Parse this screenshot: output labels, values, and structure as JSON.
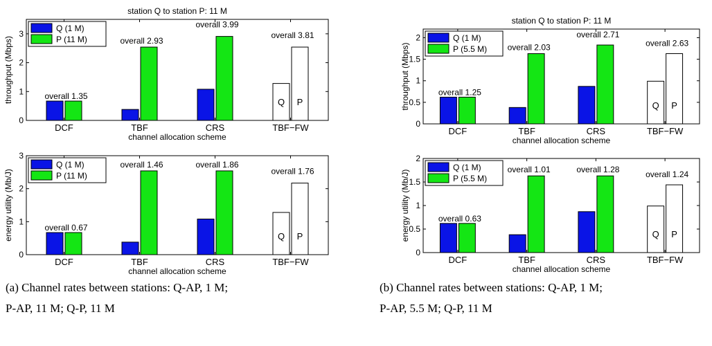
{
  "colors": {
    "q": "#0a14e6",
    "p": "#14e614",
    "fw": "#ffffff",
    "axis": "#000000"
  },
  "captions": {
    "a_line1": "(a) Channel rates between stations: Q-AP, 1 M;",
    "a_line2": "P-AP, 11 M; Q-P, 11 M",
    "b_line1": "(b) Channel rates between stations: Q-AP, 1 M;",
    "b_line2": "P-AP, 5.5 M; Q-P, 11 M"
  },
  "chart_data": [
    {
      "type": "bar",
      "title": "station Q to station P: 11 M",
      "xlabel": "channel allocation scheme",
      "ylabel": "throughput (Mbps)",
      "ylim": [
        0,
        3.5
      ],
      "yticks": [
        0,
        1,
        2,
        3
      ],
      "categories": [
        "DCF",
        "TBF",
        "CRS",
        "TBF−FW"
      ],
      "series": [
        {
          "name": "Q (1 M)",
          "values": [
            0.67,
            0.38,
            1.08,
            1.28
          ]
        },
        {
          "name": "P (11 M)",
          "values": [
            0.67,
            2.54,
            2.91,
            2.54
          ]
        }
      ],
      "annotations": [
        "overall 1.35",
        "overall 2.93",
        "overall 3.99",
        "overall 3.81"
      ],
      "bar_labels": [
        "Q",
        "P"
      ],
      "legend": "top-left",
      "grid": false
    },
    {
      "type": "bar",
      "title": "",
      "xlabel": "channel allocation scheme",
      "ylabel": "energy utility (Mb/J)",
      "ylim": [
        0,
        3
      ],
      "yticks": [
        0,
        1,
        2,
        3
      ],
      "categories": [
        "DCF",
        "TBF",
        "CRS",
        "TBF−FW"
      ],
      "series": [
        {
          "name": "Q (1 M)",
          "values": [
            0.67,
            0.38,
            1.08,
            1.28
          ]
        },
        {
          "name": "P (11 M)",
          "values": [
            0.67,
            2.54,
            2.54,
            2.17
          ]
        }
      ],
      "annotations": [
        "overall 0.67",
        "overall 1.46",
        "overall 1.86",
        "overall 1.76"
      ],
      "bar_labels": [
        "Q",
        "P"
      ],
      "legend": "top-left",
      "grid": false
    },
    {
      "type": "bar",
      "title": "station Q to station P: 11 M",
      "xlabel": "channel allocation scheme",
      "ylabel": "throughput (Mbps)",
      "ylim": [
        0,
        2.2
      ],
      "yticks": [
        0,
        0.5,
        1,
        1.5,
        2
      ],
      "categories": [
        "DCF",
        "TBF",
        "CRS",
        "TBF−FW"
      ],
      "series": [
        {
          "name": "Q (1 M)",
          "values": [
            0.62,
            0.38,
            0.87,
            0.99
          ]
        },
        {
          "name": "P (5.5 M)",
          "values": [
            0.62,
            1.63,
            1.83,
            1.63
          ]
        }
      ],
      "annotations": [
        "overall 1.25",
        "overall 2.03",
        "overall 2.71",
        "overall 2.63"
      ],
      "bar_labels": [
        "Q",
        "P"
      ],
      "legend": "top-left",
      "grid": false
    },
    {
      "type": "bar",
      "title": "",
      "xlabel": "channel allocation scheme",
      "ylabel": "energy utility (Mb/J)",
      "ylim": [
        0,
        2
      ],
      "yticks": [
        0,
        0.5,
        1,
        1.5,
        2
      ],
      "categories": [
        "DCF",
        "TBF",
        "CRS",
        "TBF−FW"
      ],
      "series": [
        {
          "name": "Q (1 M)",
          "values": [
            0.62,
            0.38,
            0.87,
            0.99
          ]
        },
        {
          "name": "P (5.5 M)",
          "values": [
            0.62,
            1.63,
            1.63,
            1.44
          ]
        }
      ],
      "annotations": [
        "overall 0.63",
        "overall 1.01",
        "overall 1.28",
        "overall 1.24"
      ],
      "bar_labels": [
        "Q",
        "P"
      ],
      "legend": "top-left",
      "grid": false
    }
  ]
}
